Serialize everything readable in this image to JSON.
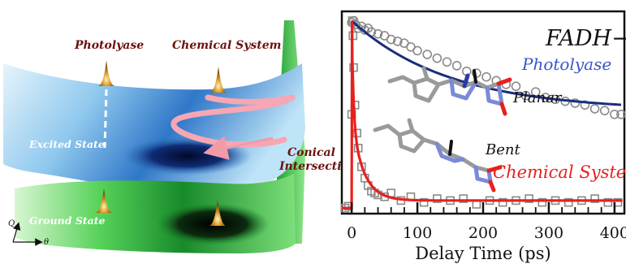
{
  "figure_left": {
    "labels": {
      "photolyase": "Photolyase",
      "chemical_system": "Chemical System",
      "excited_state": "Excited State",
      "ground_state": "Ground State",
      "conical_line1": "Conical",
      "conical_line2": "Intersection",
      "axis_q": "Q",
      "axis_theta": "θ"
    }
  },
  "chart_data": {
    "type": "scatter",
    "title": "FADH−",
    "xlabel": "Delay Time (ps)",
    "ylabel": "",
    "xlim": [
      -15,
      415
    ],
    "ylim": [
      -0.03,
      1.05
    ],
    "xticks": [
      0,
      100,
      200,
      300,
      400
    ],
    "grid": false,
    "annotations": [
      "Planar",
      "Bent"
    ],
    "colors": {
      "photolyase": "#1a2e7a",
      "photolyase_label": "#3a55c8",
      "chemical": "#e8201c",
      "markers": "#8a8a8a"
    },
    "series": [
      {
        "name": "Photolyase",
        "marker": "circle",
        "x": [
          0,
          3,
          6,
          10,
          15,
          20,
          25,
          30,
          40,
          50,
          60,
          70,
          80,
          90,
          100,
          115,
          130,
          145,
          160,
          175,
          190,
          205,
          220,
          235,
          250,
          265,
          280,
          295,
          310,
          325,
          340,
          355,
          370,
          385,
          400,
          410
        ],
        "y": [
          0.99,
          1.0,
          0.98,
          0.96,
          0.97,
          0.95,
          0.96,
          0.94,
          0.93,
          0.92,
          0.9,
          0.89,
          0.88,
          0.86,
          0.84,
          0.82,
          0.8,
          0.78,
          0.76,
          0.73,
          0.72,
          0.7,
          0.68,
          0.66,
          0.65,
          0.6,
          0.62,
          0.59,
          0.58,
          0.57,
          0.56,
          0.55,
          0.53,
          0.52,
          0.5,
          0.5
        ]
      },
      {
        "name": "Chemical System",
        "marker": "square",
        "x": [
          -10,
          -5,
          0,
          1,
          2,
          3,
          5,
          8,
          10,
          15,
          20,
          25,
          30,
          35,
          40,
          50,
          60,
          75,
          90,
          110,
          130,
          150,
          170,
          190,
          210,
          230,
          250,
          270,
          290,
          310,
          330,
          350,
          370,
          390,
          405
        ],
        "y": [
          0.0,
          0.01,
          0.5,
          1.0,
          0.92,
          0.75,
          0.55,
          0.4,
          0.32,
          0.22,
          0.16,
          0.12,
          0.09,
          0.08,
          0.07,
          0.06,
          0.08,
          0.04,
          0.06,
          0.03,
          0.05,
          0.04,
          0.05,
          0.02,
          0.04,
          0.03,
          0.04,
          0.05,
          0.03,
          0.04,
          0.03,
          0.04,
          0.05,
          0.03,
          0.03
        ]
      }
    ]
  }
}
